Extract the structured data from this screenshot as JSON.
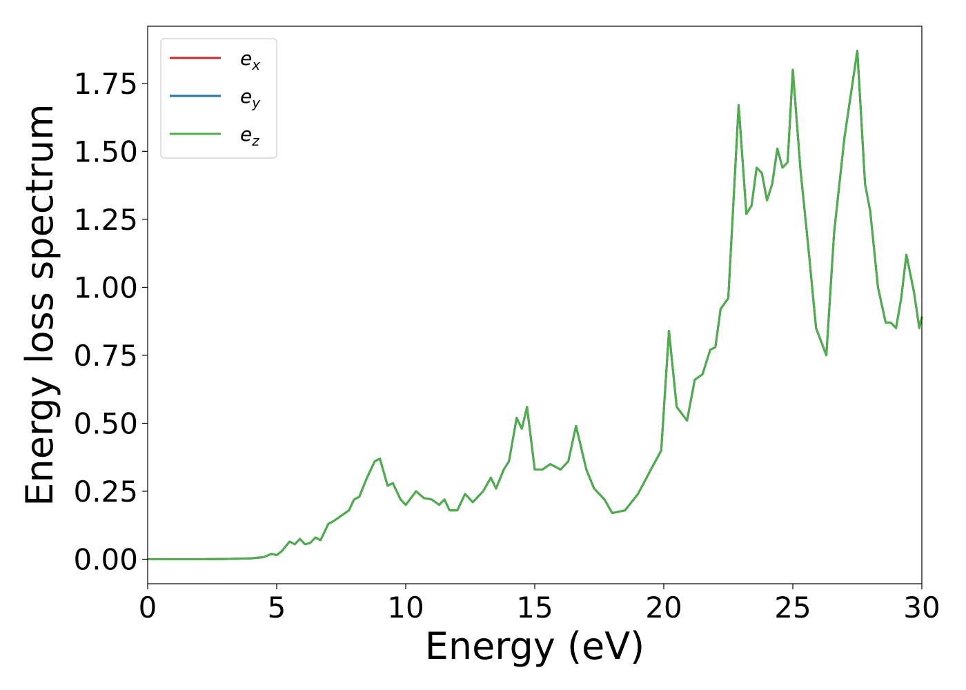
{
  "chart_data": {
    "type": "line",
    "xlabel": "Energy (eV)",
    "ylabel": "Energy loss spectrum",
    "xlim": [
      0,
      30
    ],
    "ylim": [
      -0.09,
      1.96
    ],
    "xticks": [
      0,
      5,
      10,
      15,
      20,
      25,
      30
    ],
    "xtick_labels": [
      "0",
      "5",
      "10",
      "15",
      "20",
      "25",
      "30"
    ],
    "yticks": [
      0.0,
      0.25,
      0.5,
      0.75,
      1.0,
      1.25,
      1.5,
      1.75
    ],
    "ytick_labels": [
      "0.00",
      "0.25",
      "0.50",
      "0.75",
      "1.00",
      "1.25",
      "1.50",
      "1.75"
    ],
    "grid": false,
    "legend_position": "top-left",
    "series": [
      {
        "name": "e_x",
        "label_base": "e",
        "label_sub": "x",
        "color": "#d62728"
      },
      {
        "name": "e_y",
        "label_base": "e",
        "label_sub": "y",
        "color": "#1f77b4"
      },
      {
        "name": "e_z",
        "label_base": "e",
        "label_sub": "z",
        "color": "#4daf4a"
      }
    ],
    "x": [
      0,
      1,
      2,
      3,
      4,
      4.5,
      4.8,
      5.0,
      5.2,
      5.5,
      5.7,
      5.9,
      6.1,
      6.3,
      6.5,
      6.7,
      7.0,
      7.2,
      7.5,
      7.8,
      8.0,
      8.2,
      8.5,
      8.8,
      9.0,
      9.3,
      9.5,
      9.8,
      10.0,
      10.4,
      10.7,
      11.0,
      11.3,
      11.5,
      11.7,
      12.0,
      12.3,
      12.6,
      13.0,
      13.3,
      13.5,
      13.8,
      14.0,
      14.3,
      14.5,
      14.7,
      15.0,
      15.3,
      15.6,
      16.0,
      16.3,
      16.6,
      17.0,
      17.3,
      17.7,
      18.0,
      18.5,
      19.0,
      19.5,
      19.9,
      20.2,
      20.5,
      20.9,
      21.2,
      21.5,
      21.8,
      22.0,
      22.2,
      22.5,
      22.9,
      23.2,
      23.4,
      23.6,
      23.8,
      24.0,
      24.2,
      24.4,
      24.6,
      24.8,
      25.0,
      25.3,
      25.6,
      25.9,
      26.3,
      26.6,
      27.0,
      27.5,
      27.8,
      28.0,
      28.3,
      28.6,
      28.8,
      29.0,
      29.2,
      29.4,
      29.7,
      29.9,
      30.0
    ],
    "y": [
      0.0,
      0.0,
      0.0,
      0.001,
      0.003,
      0.008,
      0.02,
      0.015,
      0.03,
      0.065,
      0.055,
      0.075,
      0.055,
      0.06,
      0.08,
      0.07,
      0.13,
      0.14,
      0.16,
      0.18,
      0.22,
      0.23,
      0.3,
      0.36,
      0.37,
      0.27,
      0.28,
      0.22,
      0.2,
      0.25,
      0.225,
      0.22,
      0.2,
      0.22,
      0.18,
      0.18,
      0.24,
      0.21,
      0.25,
      0.3,
      0.26,
      0.33,
      0.36,
      0.52,
      0.48,
      0.56,
      0.33,
      0.33,
      0.35,
      0.33,
      0.36,
      0.49,
      0.33,
      0.26,
      0.22,
      0.17,
      0.18,
      0.24,
      0.33,
      0.4,
      0.84,
      0.56,
      0.51,
      0.66,
      0.68,
      0.77,
      0.78,
      0.92,
      0.96,
      1.67,
      1.27,
      1.3,
      1.44,
      1.42,
      1.32,
      1.38,
      1.51,
      1.44,
      1.46,
      1.8,
      1.43,
      1.15,
      0.85,
      0.75,
      1.2,
      1.55,
      1.87,
      1.38,
      1.28,
      1.0,
      0.87,
      0.87,
      0.85,
      0.96,
      1.12,
      0.98,
      0.85,
      0.89
    ]
  }
}
